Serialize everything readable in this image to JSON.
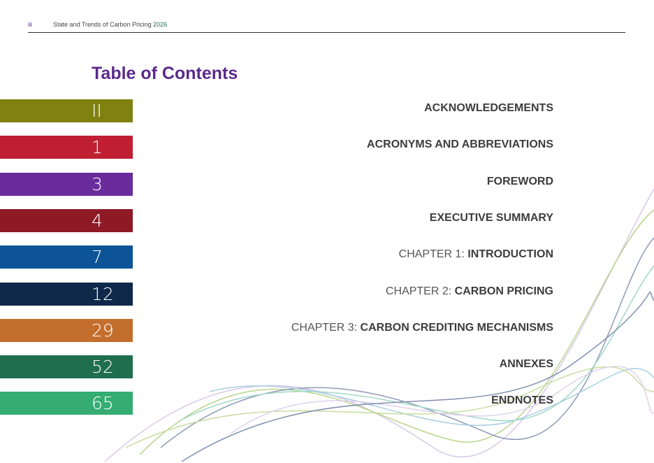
{
  "header": {
    "page": "iii",
    "title": "State and Trends of Carbon Pricing",
    "year": "2026"
  },
  "heading": "Table of Contents",
  "entries": [
    {
      "page": "II",
      "label": "ACKNOWLEDGEMENTS",
      "color": "#7f8210"
    },
    {
      "page": "1",
      "label": "ACRONYMS AND ABBREVIATIONS",
      "color": "#c01f32"
    },
    {
      "page": "3",
      "label": "FOREWORD",
      "color": "#6a2c9c"
    },
    {
      "page": "4",
      "label": "EXECUTIVE SUMMARY",
      "color": "#8e1a26"
    },
    {
      "page": "7",
      "prefix": "CHAPTER 1:",
      "label": "INTRODUCTION",
      "color": "#0d5496"
    },
    {
      "page": "12",
      "prefix": "CHAPTER 2:",
      "label": "CARBON PRICING",
      "color": "#10294a"
    },
    {
      "page": "29",
      "prefix": "CHAPTER 3:",
      "label": "CARBON CREDITING MECHANISMS",
      "color": "#c46e2d"
    },
    {
      "page": "52",
      "label": "ANNEXES",
      "color": "#1f6e4e"
    },
    {
      "page": "65",
      "label": "ENDNOTES",
      "color": "#35ad72"
    }
  ]
}
